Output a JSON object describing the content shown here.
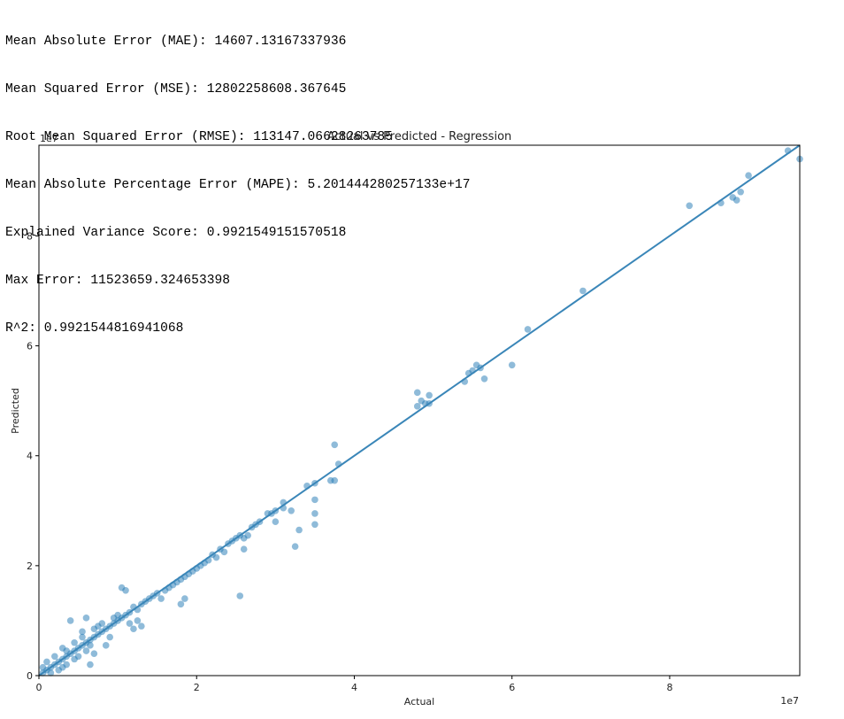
{
  "metrics": [
    "Mean Absolute Error (MAE): 14607.13167337936",
    "Mean Squared Error (MSE): 12802258608.367645",
    "Root Mean Squared Error (RMSE): 113147.06628263785",
    "Mean Absolute Percentage Error (MAPE): 5.201444280257133e+17",
    "Explained Variance Score: 0.9921549151570518",
    "Max Error: 11523659.324653398",
    "R^2: 0.9921544816941068"
  ],
  "chart_data": {
    "type": "scatter",
    "title": "Actual vs Predicted - Regression",
    "xlabel": "Actual",
    "ylabel": "Predicted",
    "x_exponent": "1e7",
    "y_exponent": "1e7",
    "xlim": [
      0,
      9.65
    ],
    "ylim": [
      0,
      9.65
    ],
    "xticks": [
      0,
      2,
      4,
      6,
      8
    ],
    "yticks": [
      0,
      2,
      4,
      6,
      8
    ],
    "grid": false,
    "point_color": "#1f77b4",
    "line_color": "#3a86b8",
    "reference_line": {
      "x": [
        0,
        9.65
      ],
      "y": [
        0,
        9.65
      ]
    },
    "points": [
      [
        9.5,
        9.55
      ],
      [
        9.65,
        9.4
      ],
      [
        9.0,
        9.1
      ],
      [
        8.9,
        8.8
      ],
      [
        8.8,
        8.7
      ],
      [
        8.85,
        8.65
      ],
      [
        8.65,
        8.6
      ],
      [
        8.25,
        8.55
      ],
      [
        6.9,
        7.0
      ],
      [
        6.2,
        6.3
      ],
      [
        5.55,
        5.65
      ],
      [
        5.6,
        5.6
      ],
      [
        5.5,
        5.55
      ],
      [
        5.45,
        5.5
      ],
      [
        6.0,
        5.65
      ],
      [
        5.65,
        5.4
      ],
      [
        5.4,
        5.35
      ],
      [
        4.8,
        5.15
      ],
      [
        4.95,
        5.1
      ],
      [
        4.85,
        5.0
      ],
      [
        4.9,
        4.95
      ],
      [
        4.8,
        4.9
      ],
      [
        4.95,
        4.95
      ],
      [
        3.75,
        4.2
      ],
      [
        3.8,
        3.85
      ],
      [
        3.7,
        3.55
      ],
      [
        3.75,
        3.55
      ],
      [
        3.5,
        3.5
      ],
      [
        3.4,
        3.45
      ],
      [
        3.5,
        3.2
      ],
      [
        3.5,
        2.95
      ],
      [
        3.5,
        2.75
      ],
      [
        3.3,
        2.65
      ],
      [
        3.25,
        2.35
      ],
      [
        3.2,
        3.0
      ],
      [
        3.1,
        3.15
      ],
      [
        3.1,
        3.05
      ],
      [
        3.0,
        3.0
      ],
      [
        2.95,
        2.95
      ],
      [
        3.0,
        2.8
      ],
      [
        2.9,
        2.95
      ],
      [
        2.8,
        2.8
      ],
      [
        2.75,
        2.75
      ],
      [
        2.7,
        2.7
      ],
      [
        2.65,
        2.55
      ],
      [
        2.6,
        2.5
      ],
      [
        2.6,
        2.3
      ],
      [
        2.55,
        2.55
      ],
      [
        2.55,
        1.45
      ],
      [
        2.5,
        2.5
      ],
      [
        2.45,
        2.45
      ],
      [
        2.4,
        2.4
      ],
      [
        2.35,
        2.25
      ],
      [
        2.3,
        2.3
      ],
      [
        2.25,
        2.15
      ],
      [
        2.2,
        2.2
      ],
      [
        2.15,
        2.1
      ],
      [
        2.1,
        2.05
      ],
      [
        2.05,
        2.0
      ],
      [
        2.0,
        1.95
      ],
      [
        1.95,
        1.9
      ],
      [
        1.9,
        1.85
      ],
      [
        1.85,
        1.8
      ],
      [
        1.8,
        1.75
      ],
      [
        1.75,
        1.7
      ],
      [
        1.7,
        1.65
      ],
      [
        1.65,
        1.6
      ],
      [
        1.6,
        1.55
      ],
      [
        1.85,
        1.4
      ],
      [
        1.8,
        1.3
      ],
      [
        1.55,
        1.4
      ],
      [
        1.5,
        1.5
      ],
      [
        1.45,
        1.45
      ],
      [
        1.4,
        1.4
      ],
      [
        1.35,
        1.35
      ],
      [
        1.3,
        1.3
      ],
      [
        1.25,
        1.2
      ],
      [
        1.2,
        1.25
      ],
      [
        1.15,
        1.15
      ],
      [
        1.1,
        1.1
      ],
      [
        1.05,
        1.6
      ],
      [
        1.1,
        1.55
      ],
      [
        1.2,
        0.85
      ],
      [
        1.3,
        0.9
      ],
      [
        1.25,
        1.0
      ],
      [
        1.05,
        1.05
      ],
      [
        1.0,
        1.0
      ],
      [
        0.95,
        0.95
      ],
      [
        0.9,
        0.9
      ],
      [
        0.85,
        0.85
      ],
      [
        0.8,
        0.8
      ],
      [
        0.75,
        0.75
      ],
      [
        0.7,
        0.7
      ],
      [
        0.65,
        0.65
      ],
      [
        0.6,
        0.6
      ],
      [
        0.55,
        0.55
      ],
      [
        0.5,
        0.5
      ],
      [
        0.45,
        0.45
      ],
      [
        0.4,
        0.4
      ],
      [
        0.35,
        0.35
      ],
      [
        0.3,
        0.3
      ],
      [
        0.25,
        0.25
      ],
      [
        0.2,
        0.2
      ],
      [
        0.15,
        0.15
      ],
      [
        0.1,
        0.1
      ],
      [
        0.05,
        0.05
      ],
      [
        0.6,
        1.05
      ],
      [
        0.65,
        0.2
      ],
      [
        0.4,
        1.0
      ],
      [
        0.9,
        0.7
      ],
      [
        0.85,
        0.55
      ],
      [
        0.7,
        0.4
      ],
      [
        0.75,
        0.9
      ],
      [
        0.55,
        0.8
      ],
      [
        0.45,
        0.6
      ],
      [
        0.35,
        0.2
      ],
      [
        0.3,
        0.5
      ],
      [
        0.2,
        0.35
      ],
      [
        0.15,
        0.05
      ],
      [
        0.25,
        0.1
      ],
      [
        0.1,
        0.25
      ],
      [
        0.05,
        0.15
      ],
      [
        1.15,
        0.95
      ],
      [
        1.0,
        1.1
      ],
      [
        0.95,
        1.05
      ],
      [
        0.8,
        0.95
      ],
      [
        0.7,
        0.85
      ],
      [
        0.65,
        0.55
      ],
      [
        0.5,
        0.35
      ],
      [
        0.6,
        0.45
      ],
      [
        0.55,
        0.7
      ],
      [
        0.45,
        0.3
      ],
      [
        0.35,
        0.45
      ],
      [
        0.3,
        0.15
      ]
    ]
  }
}
